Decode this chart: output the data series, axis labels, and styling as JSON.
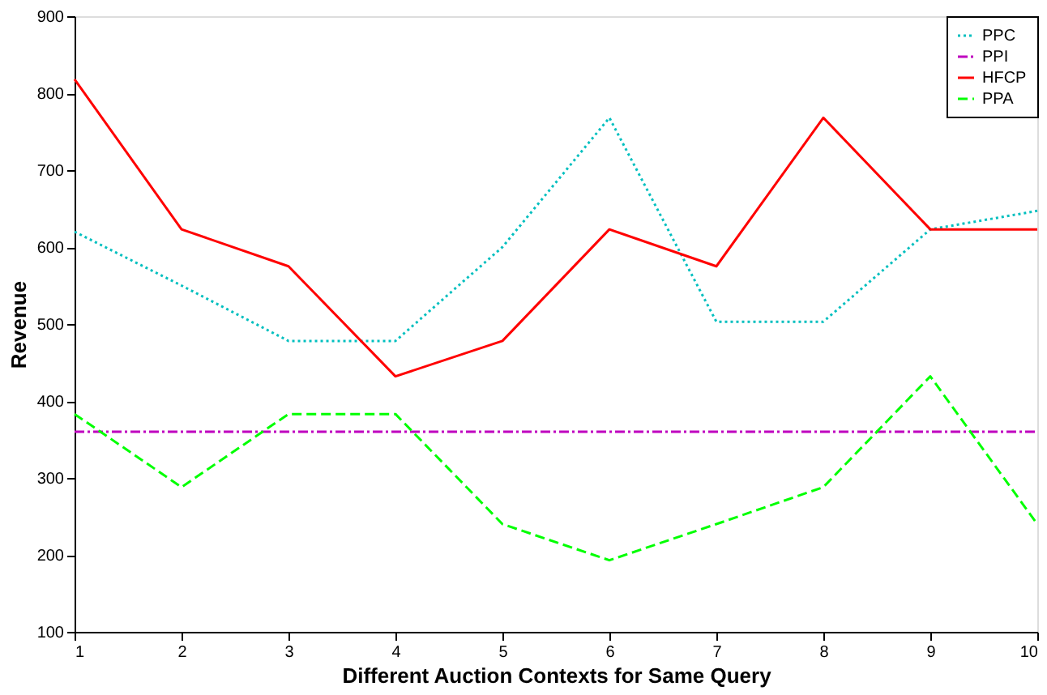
{
  "chart_data": {
    "type": "line",
    "xlabel": "Different Auction Contexts for Same Query",
    "ylabel": "Revenue",
    "x": [
      1,
      2,
      3,
      4,
      5,
      6,
      7,
      8,
      9,
      10
    ],
    "series": [
      {
        "name": "PPC",
        "color": "#00bfbf",
        "line_style": "dotted",
        "values": [
          620,
          550,
          478,
          478,
          600,
          768,
          503,
          503,
          623,
          647
        ]
      },
      {
        "name": "PPI",
        "color": "#bf00bf",
        "line_style": "dashdot",
        "values": [
          360,
          360,
          360,
          360,
          360,
          360,
          360,
          360,
          360,
          360
        ]
      },
      {
        "name": "HFCP",
        "color": "#ff0000",
        "line_style": "solid",
        "values": [
          818,
          623,
          575,
          432,
          478,
          623,
          575,
          768,
          623,
          623
        ]
      },
      {
        "name": "PPA",
        "color": "#00ff00",
        "line_style": "dashed",
        "values": [
          383,
          288,
          383,
          383,
          240,
          193,
          240,
          288,
          432,
          240
        ]
      }
    ],
    "xlim": [
      1,
      10
    ],
    "xticks": [
      1,
      2,
      3,
      4,
      5,
      6,
      7,
      8,
      9,
      10
    ],
    "ylim": [
      100,
      900
    ],
    "yticks": [
      100,
      200,
      300,
      400,
      500,
      600,
      700,
      800,
      900
    ],
    "grid": false,
    "legend": "top right",
    "marker": "none"
  }
}
